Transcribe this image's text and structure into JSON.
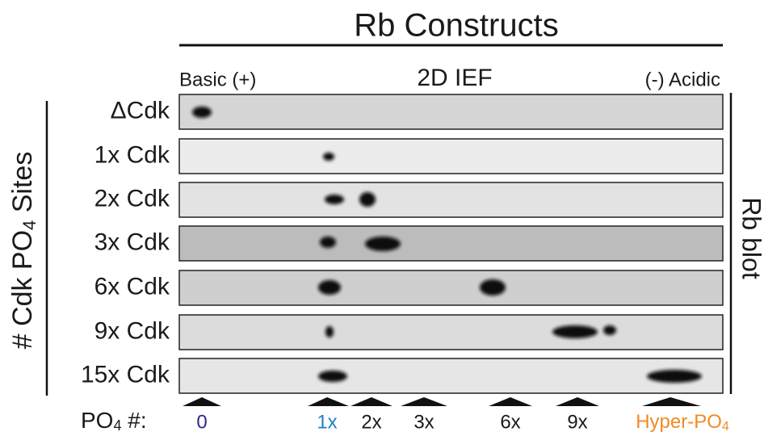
{
  "title": "Rb Constructs",
  "axis": {
    "left_end": "Basic (+)",
    "center": "2D IEF",
    "right_end": "(-) Acidic"
  },
  "rows": [
    "ΔCdk",
    "1x Cdk",
    "2x Cdk",
    "3x Cdk",
    "6x Cdk",
    "9x Cdk",
    "15x Cdk"
  ],
  "left_label": {
    "pre": "# Cdk PO",
    "sub": "4",
    "post": " Sites"
  },
  "right_label": "Rb blot",
  "bottom": {
    "label": {
      "pre": "PO",
      "sub": "4",
      "post": " #:"
    },
    "markers": [
      "0",
      "1x",
      "2x",
      "3x",
      "6x",
      "9x"
    ],
    "hyper": {
      "pre": "Hyper-PO",
      "sub": "4"
    }
  }
}
